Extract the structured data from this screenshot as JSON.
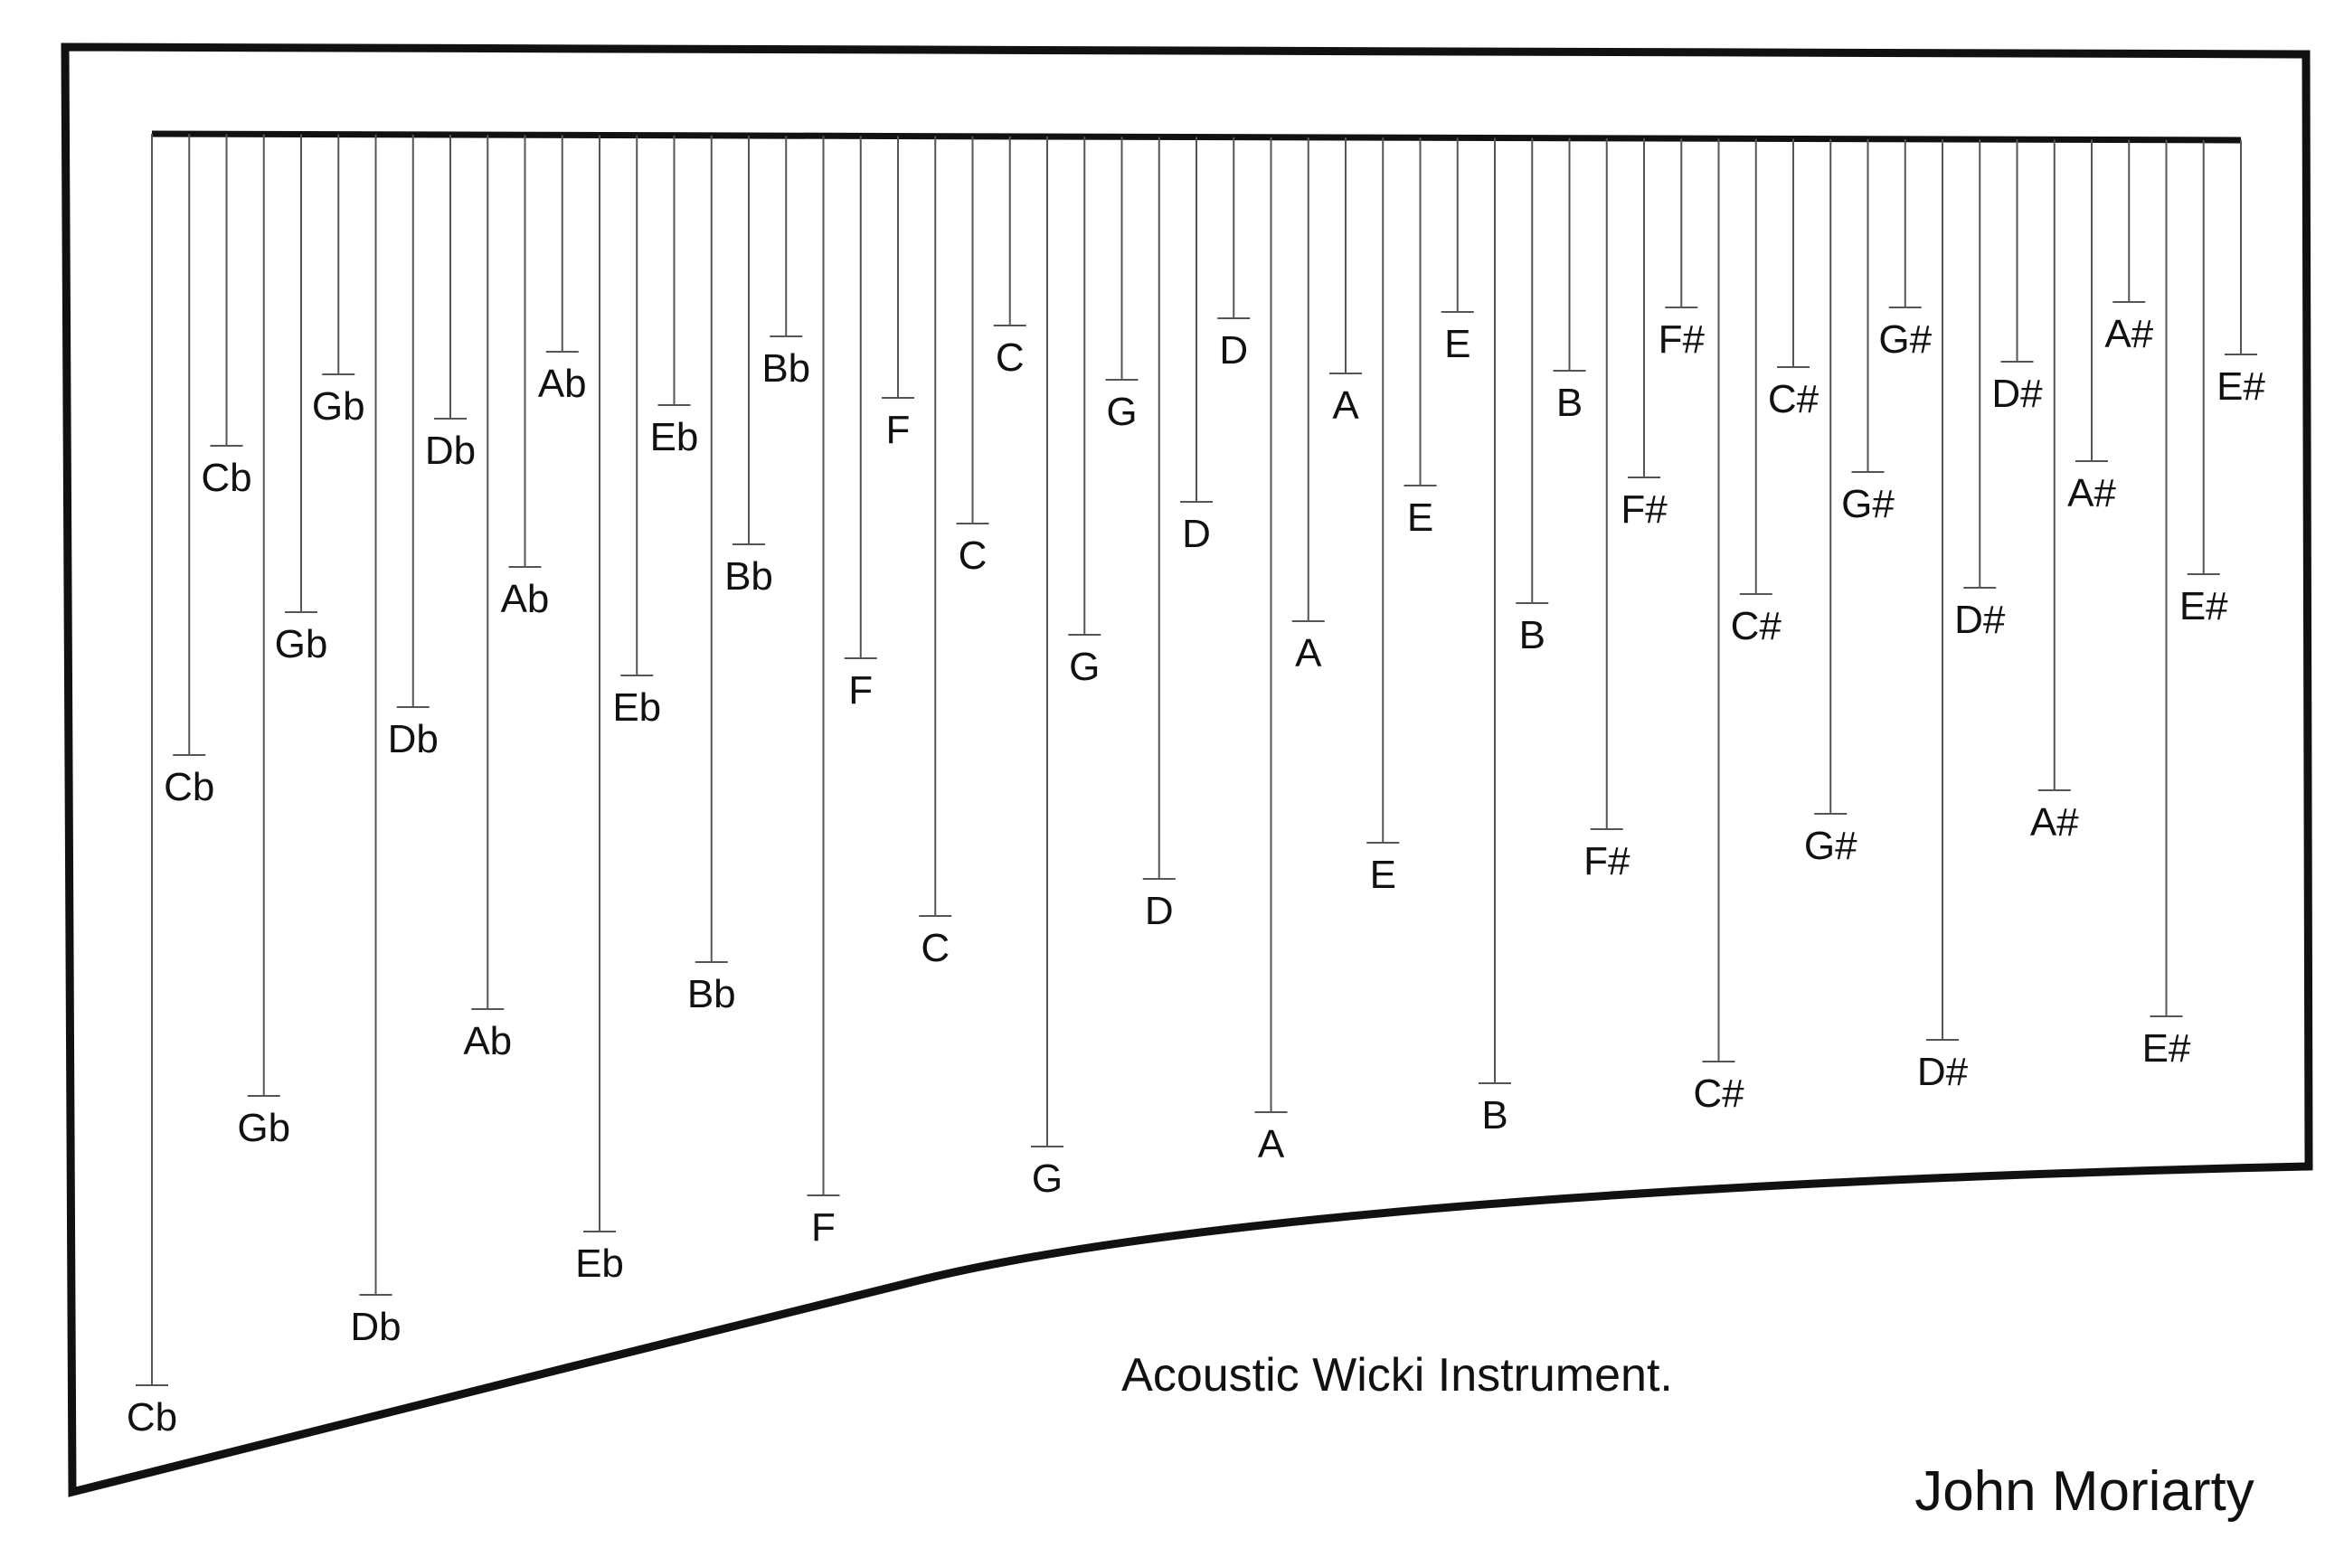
{
  "caption": "Acoustic Wicki Instrument.",
  "author": "John Moriarty",
  "colors": {
    "ink": "#111111",
    "string": "#555555",
    "background": "#ffffff"
  },
  "string_notes": [
    "Cb",
    "Cb",
    "Cb",
    "Gb",
    "Gb",
    "Gb",
    "Db",
    "Db",
    "Db",
    "Ab",
    "Ab",
    "Ab",
    "Eb",
    "Eb",
    "Eb",
    "Bb",
    "Bb",
    "Bb",
    "F",
    "F",
    "F",
    "C",
    "C",
    "C",
    "G",
    "G",
    "G",
    "D",
    "D",
    "D",
    "A",
    "A",
    "A",
    "E",
    "E",
    "E",
    "B",
    "B",
    "B",
    "F#",
    "F#",
    "F#",
    "C#",
    "C#",
    "C#",
    "G#",
    "G#",
    "G#",
    "D#",
    "D#",
    "D#",
    "A#",
    "A#",
    "A#",
    "E#",
    "E#",
    "E#"
  ]
}
